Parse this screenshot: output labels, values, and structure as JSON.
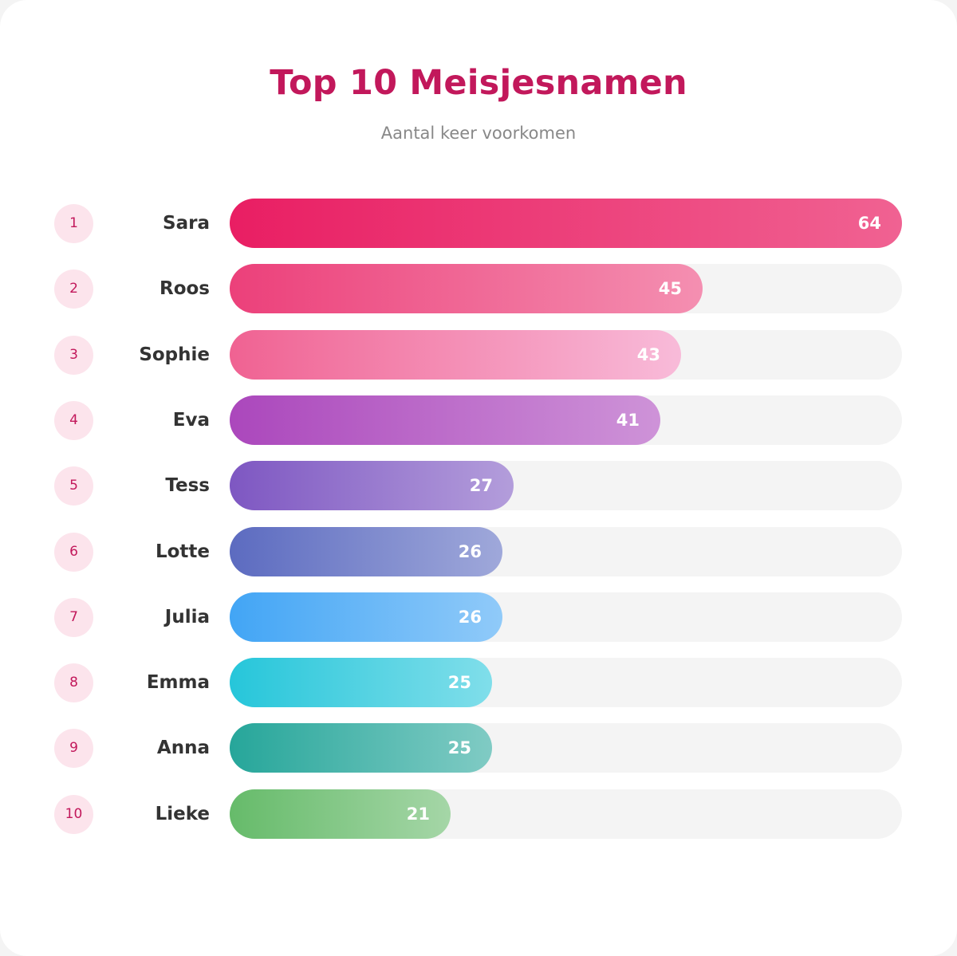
{
  "title": "Top 10 Meisjesnamen",
  "subtitle": "Aantal keer voorkomen",
  "chart_data": {
    "type": "bar",
    "orientation": "horizontal",
    "title": "Top 10 Meisjesnamen",
    "subtitle": "Aantal keer voorkomen",
    "xlim": [
      0,
      64
    ],
    "ranks": [
      "1",
      "2",
      "3",
      "4",
      "5",
      "6",
      "7",
      "8",
      "9",
      "10"
    ],
    "categories": [
      "Sara",
      "Roos",
      "Sophie",
      "Eva",
      "Tess",
      "Lotte",
      "Julia",
      "Emma",
      "Anna",
      "Lieke"
    ],
    "values": [
      64,
      45,
      43,
      41,
      27,
      26,
      26,
      25,
      25,
      21
    ],
    "colors": [
      [
        "#e91e63",
        "#f06292"
      ],
      [
        "#ec407a",
        "#f48fb1"
      ],
      [
        "#f06292",
        "#f8bbd9"
      ],
      [
        "#ab47bc",
        "#ce93d8"
      ],
      [
        "#7e57c2",
        "#b39ddb"
      ],
      [
        "#5c6bc0",
        "#9fa8da"
      ],
      [
        "#42a5f5",
        "#90caf9"
      ],
      [
        "#26c6da",
        "#80deea"
      ],
      [
        "#26a69a",
        "#80cbc4"
      ],
      [
        "#66bb6a",
        "#a5d6a7"
      ]
    ]
  }
}
